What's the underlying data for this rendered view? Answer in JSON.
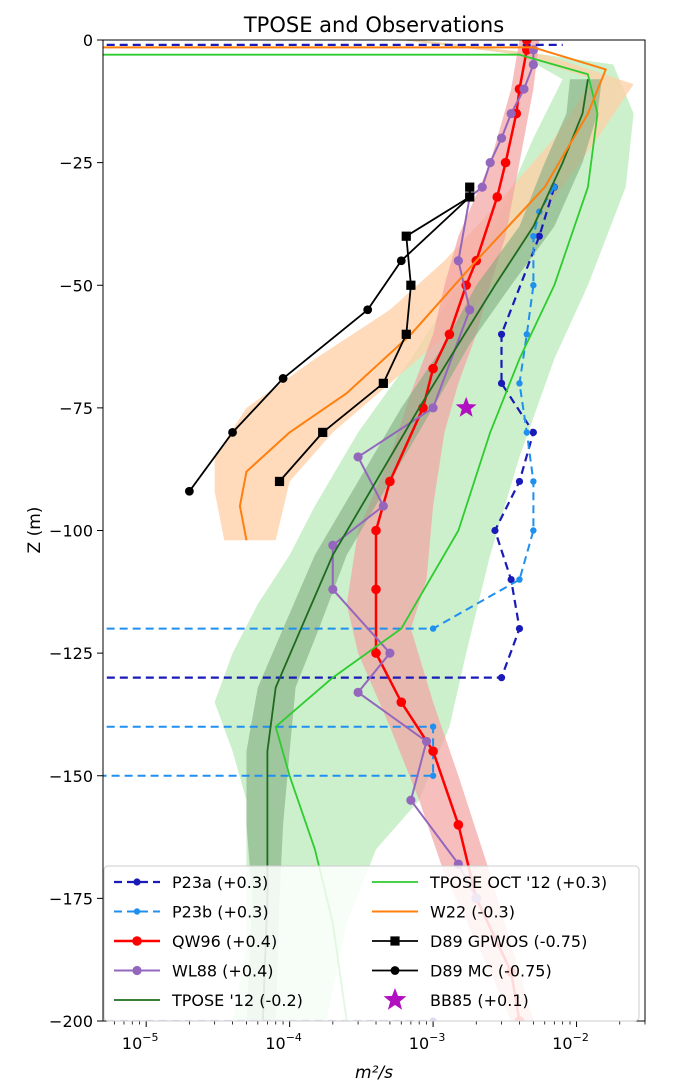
{
  "chart_data": {
    "type": "line",
    "title": "TPOSE and Observations",
    "xlabel": "m²/s",
    "ylabel": "Z (m)",
    "x_scale": "log",
    "xlim": [
      5e-06,
      0.03
    ],
    "ylim": [
      -200,
      0
    ],
    "x_ticks": [
      {
        "v": 1e-05,
        "mant": "10",
        "exp": "−5"
      },
      {
        "v": 0.0001,
        "mant": "10",
        "exp": "−4"
      },
      {
        "v": 0.001,
        "mant": "10",
        "exp": "−3"
      },
      {
        "v": 0.01,
        "mant": "10",
        "exp": "−2"
      }
    ],
    "y_ticks": [
      {
        "v": 0,
        "label": "0"
      },
      {
        "v": -25,
        "label": "−25"
      },
      {
        "v": -50,
        "label": "−50"
      },
      {
        "v": -75,
        "label": "−75"
      },
      {
        "v": -100,
        "label": "−100"
      },
      {
        "v": -125,
        "label": "−125"
      },
      {
        "v": -150,
        "label": "−150"
      },
      {
        "v": -175,
        "label": "−175"
      },
      {
        "v": -200,
        "label": "−200"
      }
    ],
    "grid": false,
    "legend_position": "lower-center",
    "bands": [
      {
        "color": "#a8e6a8",
        "opacity": 0.6,
        "lo": [
          [
            0.0006,
            0
          ],
          [
            0.004,
            -3
          ],
          [
            0.008,
            -8
          ],
          [
            0.005,
            -20
          ],
          [
            0.003,
            -35
          ],
          [
            0.0015,
            -50
          ],
          [
            0.0007,
            -65
          ],
          [
            0.0003,
            -80
          ],
          [
            0.00015,
            -95
          ],
          [
            0.0001,
            -105
          ],
          [
            6e-05,
            -115
          ],
          [
            4e-05,
            -125
          ],
          [
            3e-05,
            -135
          ],
          [
            4e-05,
            -145
          ],
          [
            5e-05,
            -155
          ],
          [
            5e-05,
            -170
          ],
          [
            5e-05,
            -185
          ],
          [
            4e-05,
            -200
          ]
        ],
        "hi": [
          [
            0.0008,
            0
          ],
          [
            0.006,
            -3
          ],
          [
            0.018,
            -5
          ],
          [
            0.025,
            -15
          ],
          [
            0.022,
            -30
          ],
          [
            0.012,
            -50
          ],
          [
            0.007,
            -65
          ],
          [
            0.004,
            -85
          ],
          [
            0.0025,
            -105
          ],
          [
            0.0017,
            -125
          ],
          [
            0.0013,
            -140
          ],
          [
            0.0008,
            -155
          ],
          [
            0.0004,
            -165
          ],
          [
            0.00025,
            -180
          ],
          [
            0.00018,
            -200
          ]
        ]
      },
      {
        "color": "#ffcfa6",
        "opacity": 0.75,
        "lo": [
          [
            0.0006,
            0
          ],
          [
            0.004,
            -3
          ],
          [
            0.013,
            -8
          ],
          [
            0.007,
            -20
          ],
          [
            0.0025,
            -35
          ],
          [
            0.0012,
            -45
          ],
          [
            0.0005,
            -55
          ],
          [
            0.00015,
            -65
          ],
          [
            5e-05,
            -75
          ],
          [
            3e-05,
            -85
          ],
          [
            3e-05,
            -92
          ],
          [
            3.5e-05,
            -102
          ]
        ],
        "hi": [
          [
            0.0008,
            0
          ],
          [
            0.006,
            -3
          ],
          [
            0.025,
            -9
          ],
          [
            0.014,
            -20
          ],
          [
            0.006,
            -35
          ],
          [
            0.003,
            -48
          ],
          [
            0.0015,
            -58
          ],
          [
            0.0005,
            -70
          ],
          [
            0.0002,
            -80
          ],
          [
            0.0001,
            -90
          ],
          [
            8e-05,
            -102
          ]
        ]
      },
      {
        "color": "#f4a3a3",
        "opacity": 0.7,
        "lo": [
          [
            0.004,
            0
          ],
          [
            0.0035,
            -10
          ],
          [
            0.0025,
            -25
          ],
          [
            0.0015,
            -40
          ],
          [
            0.0012,
            -50
          ],
          [
            0.001,
            -60
          ],
          [
            0.0007,
            -72
          ],
          [
            0.0005,
            -85
          ],
          [
            0.0003,
            -100
          ],
          [
            0.00025,
            -115
          ],
          [
            0.0003,
            -125
          ],
          [
            0.0005,
            -140
          ],
          [
            0.0008,
            -155
          ],
          [
            0.0012,
            -170
          ],
          [
            0.0025,
            -190
          ],
          [
            0.0035,
            -200
          ]
        ],
        "hi": [
          [
            0.0055,
            0
          ],
          [
            0.005,
            -10
          ],
          [
            0.004,
            -25
          ],
          [
            0.0032,
            -40
          ],
          [
            0.0025,
            -50
          ],
          [
            0.002,
            -60
          ],
          [
            0.0015,
            -70
          ],
          [
            0.0012,
            -80
          ],
          [
            0.001,
            -95
          ],
          [
            0.0009,
            -110
          ],
          [
            0.0007,
            -120
          ],
          [
            0.001,
            -135
          ],
          [
            0.0015,
            -150
          ],
          [
            0.0025,
            -170
          ],
          [
            0.004,
            -190
          ],
          [
            0.005,
            -200
          ]
        ]
      },
      {
        "color": "#7aa57a",
        "opacity": 0.55,
        "lo": [
          [
            0.009,
            -8
          ],
          [
            0.0085,
            -15
          ],
          [
            0.006,
            -25
          ],
          [
            0.004,
            -38
          ],
          [
            0.002,
            -50
          ],
          [
            0.0012,
            -62
          ],
          [
            0.0006,
            -75
          ],
          [
            0.0003,
            -90
          ],
          [
            0.00015,
            -105
          ],
          [
            9e-05,
            -120
          ],
          [
            6e-05,
            -132
          ],
          [
            5e-05,
            -145
          ],
          [
            5e-05,
            -160
          ],
          [
            5.5e-05,
            -175
          ],
          [
            5e-05,
            -200
          ]
        ],
        "hi": [
          [
            0.015,
            -8
          ],
          [
            0.014,
            -15
          ],
          [
            0.011,
            -25
          ],
          [
            0.007,
            -38
          ],
          [
            0.0035,
            -50
          ],
          [
            0.0018,
            -62
          ],
          [
            0.001,
            -75
          ],
          [
            0.0005,
            -90
          ],
          [
            0.00025,
            -105
          ],
          [
            0.00016,
            -120
          ],
          [
            0.00011,
            -132
          ],
          [
            0.0001,
            -145
          ],
          [
            9e-05,
            -160
          ],
          [
            8.5e-05,
            -175
          ],
          [
            8e-05,
            -200
          ]
        ]
      }
    ],
    "series": [
      {
        "name": "P23a (+0.3)",
        "color": "#1a1ab8",
        "dash": "8,5",
        "marker": "circle",
        "marker_size": 3.6,
        "width": 2.2,
        "points": [
          [
            1e-06,
            -1
          ],
          [
            0.008,
            -1
          ]
        ],
        "markers": false
      },
      {
        "name": "P23b (+0.3)",
        "color": "#1f8ff0",
        "dash": "8,5",
        "marker": "circle",
        "marker_size": 3.2,
        "width": 2,
        "points": [
          [
            0.007,
            -30
          ],
          [
            0.0055,
            -35
          ],
          [
            0.005,
            -40
          ],
          [
            0.005,
            -50
          ],
          [
            0.0045,
            -60
          ],
          [
            0.004,
            -70
          ],
          [
            0.0045,
            -80
          ],
          [
            0.005,
            -90
          ],
          [
            0.005,
            -100
          ],
          [
            0.004,
            -110
          ],
          [
            0.001,
            -120
          ],
          [
            1e-06,
            -120
          ]
        ]
      },
      {
        "name": "QW96 (+0.4)",
        "color": "#ff0000",
        "dash": "",
        "marker": "circle",
        "marker_size": 4.8,
        "width": 2.5,
        "points": [
          [
            0.0045,
            0
          ],
          [
            0.0045,
            -2
          ],
          [
            0.004,
            -10
          ],
          [
            0.0038,
            -15
          ],
          [
            0.0032,
            -25
          ],
          [
            0.0028,
            -32
          ],
          [
            0.002,
            -45
          ],
          [
            0.0017,
            -50
          ],
          [
            0.0013,
            -60
          ],
          [
            0.001,
            -67
          ],
          [
            0.00085,
            -75
          ],
          [
            0.0005,
            -90
          ],
          [
            0.0004,
            -100
          ],
          [
            0.0004,
            -112
          ],
          [
            0.0004,
            -125
          ],
          [
            0.0006,
            -135
          ],
          [
            0.001,
            -145
          ],
          [
            0.0015,
            -160
          ],
          [
            0.002,
            -175
          ],
          [
            0.0035,
            -190
          ],
          [
            0.004,
            -200
          ]
        ]
      },
      {
        "name": "WL88 (+0.4)",
        "color": "#9467bd",
        "dash": "",
        "marker": "circle",
        "marker_size": 4.6,
        "width": 2,
        "points": [
          [
            0.005,
            -2
          ],
          [
            0.005,
            -5
          ],
          [
            0.0043,
            -10
          ],
          [
            0.0035,
            -15
          ],
          [
            0.003,
            -20
          ],
          [
            0.0025,
            -25
          ],
          [
            0.0022,
            -30
          ],
          [
            0.0018,
            -32
          ],
          [
            0.0015,
            -45
          ],
          [
            0.0018,
            -55
          ],
          [
            0.001,
            -75
          ],
          [
            0.0003,
            -85
          ],
          [
            0.00045,
            -95
          ],
          [
            0.0002,
            -103
          ],
          [
            0.0002,
            -112
          ],
          [
            0.0005,
            -125
          ],
          [
            0.0003,
            -133
          ],
          [
            0.0009,
            -143
          ],
          [
            0.0007,
            -155
          ],
          [
            0.0015,
            -168
          ],
          [
            0.002,
            -175
          ]
        ]
      },
      {
        "name": "TPOSE '12 (-0.2)",
        "color": "#1e6b1e",
        "dash": "",
        "marker": "none",
        "marker_size": 0,
        "width": 1.8,
        "points": [
          [
            0.012,
            -8
          ],
          [
            0.011,
            -15
          ],
          [
            0.008,
            -25
          ],
          [
            0.005,
            -38
          ],
          [
            0.0027,
            -50
          ],
          [
            0.0015,
            -62
          ],
          [
            0.0008,
            -75
          ],
          [
            0.0004,
            -90
          ],
          [
            0.0002,
            -105
          ],
          [
            0.00012,
            -120
          ],
          [
            8e-05,
            -132
          ],
          [
            7e-05,
            -145
          ],
          [
            7e-05,
            -160
          ],
          [
            7e-05,
            -175
          ],
          [
            6.5e-05,
            -200
          ]
        ]
      },
      {
        "name": "TPOSE OCT '12 (+0.3)",
        "color": "#2ecc2e",
        "dash": "",
        "marker": "none",
        "marker_size": 0,
        "width": 1.8,
        "points": [
          [
            1e-06,
            -3
          ],
          [
            0.004,
            -3
          ],
          [
            0.012,
            -7
          ],
          [
            0.014,
            -15
          ],
          [
            0.012,
            -30
          ],
          [
            0.007,
            -50
          ],
          [
            0.004,
            -65
          ],
          [
            0.0025,
            -80
          ],
          [
            0.0015,
            -100
          ],
          [
            0.0006,
            -120
          ],
          [
            0.0002,
            -130
          ],
          [
            8e-05,
            -140
          ],
          [
            0.0001,
            -150
          ],
          [
            0.00015,
            -165
          ],
          [
            0.0002,
            -180
          ],
          [
            0.00025,
            -200
          ]
        ]
      },
      {
        "name": "W22 (-0.3)",
        "color": "#ff7f0e",
        "dash": "",
        "marker": "none",
        "marker_size": 0,
        "width": 2,
        "points": [
          [
            1e-06,
            -1.5
          ],
          [
            0.005,
            -1.5
          ],
          [
            0.016,
            -6
          ],
          [
            0.012,
            -15
          ],
          [
            0.006,
            -30
          ],
          [
            0.002,
            -45
          ],
          [
            0.0007,
            -60
          ],
          [
            0.00025,
            -72
          ],
          [
            0.0001,
            -80
          ],
          [
            5e-05,
            -88
          ],
          [
            4.5e-05,
            -95
          ],
          [
            5e-05,
            -102
          ]
        ]
      },
      {
        "name": "D89 GPWOS (-0.75)",
        "color": "#000000",
        "dash": "",
        "marker": "square",
        "marker_size": 4.6,
        "width": 1.8,
        "points": [
          [
            0.0018,
            -30
          ],
          [
            0.0018,
            -32
          ],
          [
            0.00065,
            -40
          ],
          [
            0.0007,
            -50
          ],
          [
            0.00065,
            -60
          ],
          [
            0.00045,
            -70
          ],
          [
            0.00017,
            -80
          ],
          [
            8.5e-05,
            -90
          ]
        ]
      },
      {
        "name": "D89 MC (-0.75)",
        "color": "#000000",
        "dash": "",
        "marker": "circle",
        "marker_size": 4.4,
        "width": 1.8,
        "points": [
          [
            0.0018,
            -30
          ],
          [
            0.0018,
            -32
          ],
          [
            0.0006,
            -45
          ],
          [
            0.00035,
            -55
          ],
          [
            9e-05,
            -69
          ],
          [
            4e-05,
            -80
          ],
          [
            2e-05,
            -92
          ]
        ]
      },
      {
        "name": "BB85 (+0.1)",
        "color": "#b010c0",
        "dash": "none",
        "marker": "star",
        "marker_size": 11,
        "width": 0,
        "points": [
          [
            0.0017,
            -75
          ]
        ]
      }
    ],
    "extra_lines": [
      {
        "series": "P23a (+0.3)",
        "color": "#1a1ab8",
        "dash": "8,5",
        "marker_size": 3.6,
        "width": 2.2,
        "points": [
          [
            0.007,
            -30
          ],
          [
            0.0055,
            -40
          ],
          [
            0.003,
            -60
          ],
          [
            0.003,
            -70
          ],
          [
            0.005,
            -80
          ],
          [
            0.004,
            -90
          ],
          [
            0.0027,
            -100
          ],
          [
            0.0035,
            -110
          ],
          [
            0.004,
            -120
          ],
          [
            0.003,
            -130
          ],
          [
            1e-06,
            -130
          ]
        ]
      },
      {
        "series": "P23b (+0.3)",
        "color": "#1f8ff0",
        "dash": "8,5",
        "marker_size": 3.2,
        "width": 2,
        "points": [
          [
            1e-06,
            -140
          ],
          [
            0.001,
            -140
          ],
          [
            0.001,
            -150
          ],
          [
            1e-06,
            -150
          ]
        ]
      },
      {
        "series": "P23a (+0.3)",
        "color": "#1a1ab8",
        "dash": "8,5",
        "marker_size": 3.6,
        "width": 2.2,
        "points": [
          [
            1e-06,
            -200
          ],
          [
            0.001,
            -200
          ]
        ]
      }
    ]
  }
}
